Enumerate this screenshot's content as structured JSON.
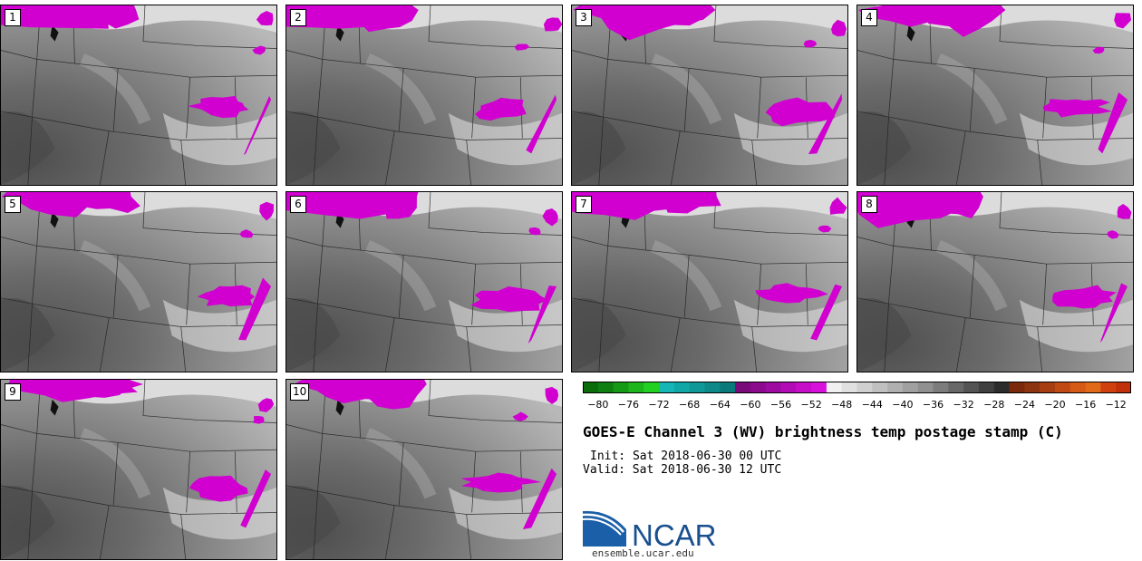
{
  "figure": {
    "title": "GOES-E Channel 3 (WV) brightness temp postage stamp (C)",
    "init": "Init: Sat 2018-06-30 00 UTC",
    "valid": "Valid: Sat 2018-06-30 12 UTC",
    "logo_text": "NCAR",
    "logo_url": "ensemble.ucar.edu"
  },
  "panels": [
    {
      "label": "1"
    },
    {
      "label": "2"
    },
    {
      "label": "3"
    },
    {
      "label": "4"
    },
    {
      "label": "5"
    },
    {
      "label": "6"
    },
    {
      "label": "7"
    },
    {
      "label": "8"
    },
    {
      "label": "9"
    },
    {
      "label": "10"
    }
  ],
  "colorbar": {
    "tick_labels": [
      "−80",
      "−76",
      "−72",
      "−68",
      "−64",
      "−60",
      "−56",
      "−52",
      "−48",
      "−44",
      "−40",
      "−36",
      "−32",
      "−28",
      "−24",
      "−20",
      "−16",
      "−12"
    ],
    "colors": [
      "#0a6d0a",
      "#0f7f12",
      "#159a16",
      "#1cb51c",
      "#22d022",
      "#14b6b6",
      "#12a7a7",
      "#109898",
      "#0e8989",
      "#0b7a7a",
      "#7a0a7a",
      "#8c0a8c",
      "#9e0ba0",
      "#b20cb4",
      "#c60ec8",
      "#d810dc",
      "#f0f0f0",
      "#e0e0e0",
      "#d0d0d0",
      "#c0c0c0",
      "#b0b0b0",
      "#a0a0a0",
      "#909090",
      "#7c7c7c",
      "#686868",
      "#545454",
      "#404040",
      "#2c2c2c",
      "#7a2a0a",
      "#8c3410",
      "#a63e12",
      "#c04a14",
      "#d45a16",
      "#e06a18",
      "#d0400e",
      "#c0300a"
    ],
    "range": [
      -82,
      -10
    ]
  },
  "colors": {
    "cold_cloud": "#d100d1",
    "background": "#ffffff"
  }
}
